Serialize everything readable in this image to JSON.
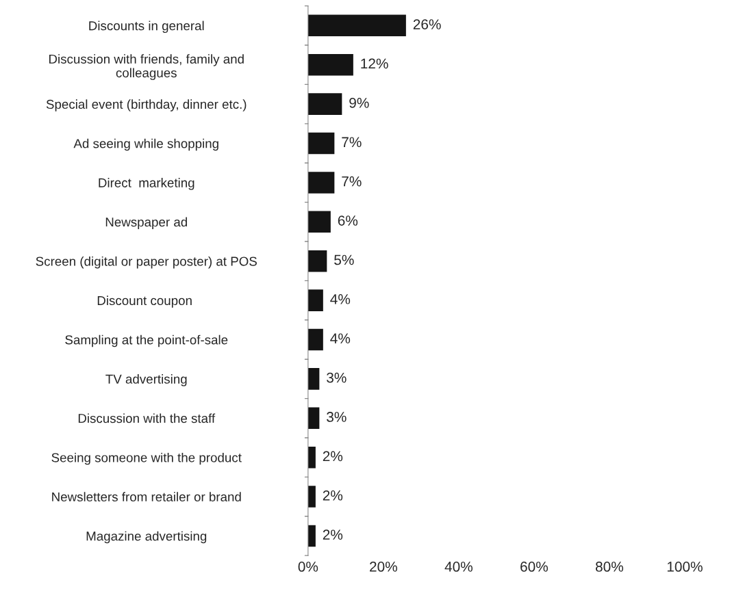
{
  "chart_data": {
    "type": "bar",
    "orientation": "horizontal",
    "categories": [
      "Discounts in general",
      "Discussion with friends, family and\ncolleagues",
      "Special event (birthday, dinner etc.)",
      "Ad seeing while shopping",
      "Direct  marketing",
      "Newspaper ad",
      "Screen (digital or paper poster) at POS",
      "Discount coupon ",
      "Sampling at the point-of-sale",
      "TV advertising",
      "Discussion with the staff",
      "Seeing someone with the product",
      "Newsletters from retailer or brand",
      "Magazine advertising"
    ],
    "values": [
      26,
      12,
      9,
      7,
      7,
      6,
      5,
      4,
      4,
      3,
      3,
      2,
      2,
      2
    ],
    "value_labels": [
      "26%",
      "12%",
      "9%",
      "7%",
      "7%",
      "6%",
      "5%",
      "4%",
      "4%",
      "3%",
      "3%",
      "2%",
      "2%",
      "2%"
    ],
    "color": "#141414",
    "xlim": [
      0,
      100
    ],
    "xticks": [
      {
        "value": 0,
        "label": "0%"
      },
      {
        "value": 20,
        "label": "20%"
      },
      {
        "value": 40,
        "label": "40%"
      },
      {
        "value": 60,
        "label": "60%"
      },
      {
        "value": 80,
        "label": "80%"
      },
      {
        "value": 100,
        "label": "100%"
      }
    ],
    "grid": false,
    "legend": false
  }
}
